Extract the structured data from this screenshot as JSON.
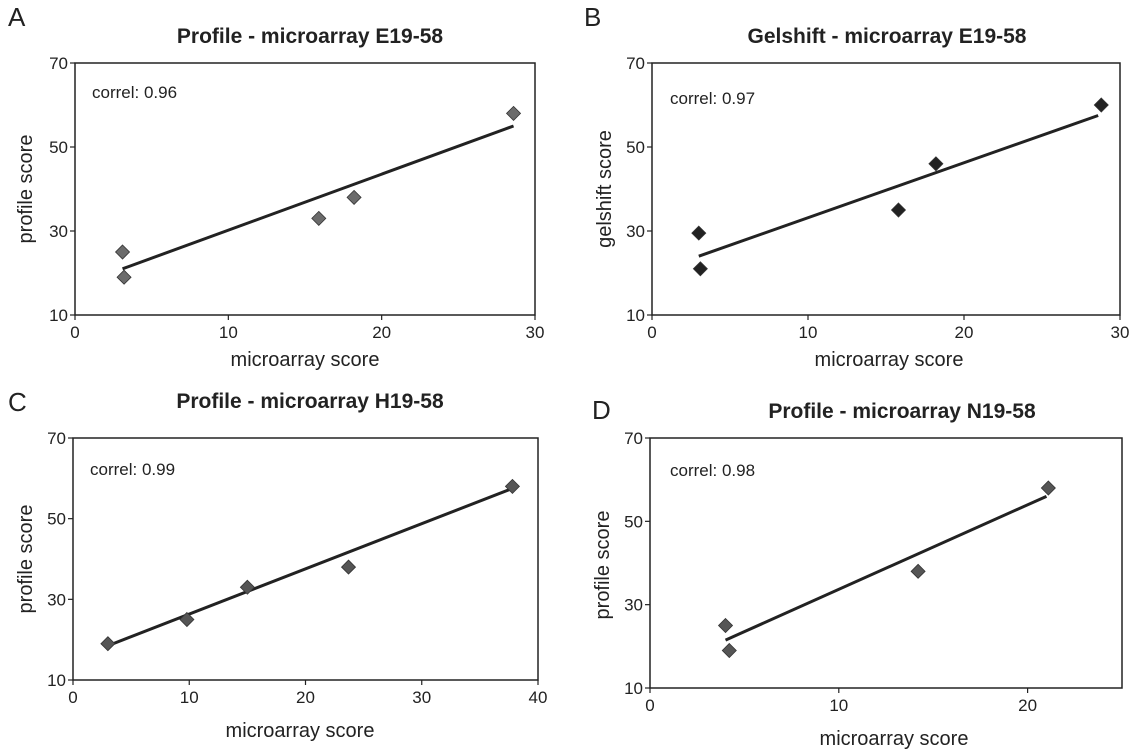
{
  "chart_data": [
    {
      "panel_letter": "A",
      "type": "scatter",
      "title": "Profile - microarray E19-58",
      "xlabel": "microarray score",
      "ylabel": "profile score",
      "annotation": "correl: 0.96",
      "xlim": [
        0,
        30
      ],
      "ylim": [
        10,
        70
      ],
      "xticks": [
        0,
        10,
        20,
        30
      ],
      "yticks": [
        10,
        30,
        50,
        70
      ],
      "series": [
        {
          "x": [
            3.1,
            3.2,
            15.9,
            18.2,
            28.6
          ],
          "y": [
            25,
            19,
            33,
            38,
            58
          ]
        }
      ],
      "trendline": {
        "x": [
          3.1,
          28.6
        ],
        "y": [
          21,
          55
        ]
      },
      "marker_color": "#6b6b6b",
      "grid": false,
      "legend": "none"
    },
    {
      "panel_letter": "B",
      "type": "scatter",
      "title": "Gelshift - microarray E19-58",
      "xlabel": "microarray score",
      "ylabel": "gelshift score",
      "annotation": "correl: 0.97",
      "xlim": [
        0,
        30
      ],
      "ylim": [
        10,
        70
      ],
      "xticks": [
        0,
        10,
        20,
        30
      ],
      "yticks": [
        10,
        30,
        50,
        70
      ],
      "series": [
        {
          "x": [
            3.0,
            3.1,
            15.8,
            18.2,
            28.8
          ],
          "y": [
            29.5,
            21,
            35,
            46,
            60
          ]
        }
      ],
      "trendline": {
        "x": [
          3.0,
          28.6
        ],
        "y": [
          24,
          57.5
        ]
      },
      "marker_color": "#222222",
      "grid": false,
      "legend": "none"
    },
    {
      "panel_letter": "C",
      "type": "scatter",
      "title": "Profile - microarray H19-58",
      "xlabel": "microarray score",
      "ylabel": "profile score",
      "annotation": "correl: 0.99",
      "xlim": [
        0,
        40
      ],
      "ylim": [
        10,
        70
      ],
      "xticks": [
        0,
        10,
        20,
        30,
        40
      ],
      "yticks": [
        10,
        30,
        50,
        70
      ],
      "series": [
        {
          "x": [
            3,
            9.8,
            15,
            23.7,
            37.8
          ],
          "y": [
            19,
            25,
            33,
            38,
            58
          ]
        }
      ],
      "trendline": {
        "x": [
          3,
          37.8
        ],
        "y": [
          18.5,
          57.5
        ]
      },
      "marker_color": "#555555",
      "grid": false,
      "legend": "none"
    },
    {
      "panel_letter": "D",
      "type": "scatter",
      "title": "Profile - microarray N19-58",
      "xlabel": "microarray score",
      "ylabel": "profile score",
      "annotation": "correl: 0.98",
      "xlim": [
        0,
        25
      ],
      "ylim": [
        10,
        70
      ],
      "xticks": [
        0,
        10,
        20
      ],
      "yticks": [
        10,
        30,
        50,
        70
      ],
      "series": [
        {
          "x": [
            4.0,
            4.2,
            14.2,
            21.1
          ],
          "y": [
            25,
            19,
            38,
            58
          ]
        }
      ],
      "trendline": {
        "x": [
          4.0,
          21.0
        ],
        "y": [
          21.5,
          56
        ]
      },
      "marker_color": "#555555",
      "grid": false,
      "legend": "none"
    }
  ]
}
